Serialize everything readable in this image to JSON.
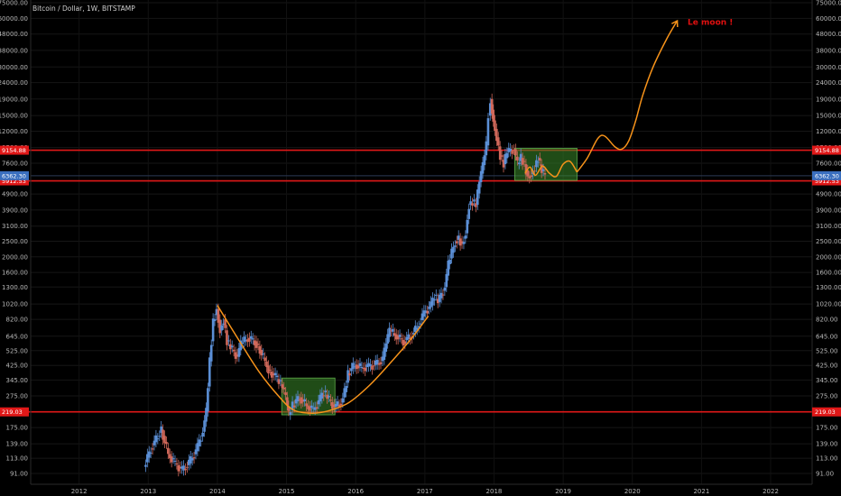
{
  "chart_data": {
    "type": "candlestick",
    "title": "Bitcoin / Dollar, 1W, BITSTAMP",
    "scale": "log",
    "ylim": [
      78,
      78000
    ],
    "xlim": [
      2011.3,
      2022.6
    ],
    "y_ticks": [
      "91.00",
      "113.00",
      "139.00",
      "175.00",
      "219.00",
      "275.00",
      "345.00",
      "425.00",
      "525.00",
      "645.00",
      "820.00",
      "1020.00",
      "1300.00",
      "1600.00",
      "2000.00",
      "2500.00",
      "3100.00",
      "3900.00",
      "4900.00",
      "7600.00",
      "9500.00",
      "12000.00",
      "15000.00",
      "19000.00",
      "24000.00",
      "30000.00",
      "38000.00",
      "48000.00",
      "60000.00",
      "75000.00"
    ],
    "x_ticks": [
      "2012",
      "2013",
      "2014",
      "2015",
      "2016",
      "2017",
      "2018",
      "2019",
      "2020",
      "2021",
      "2022"
    ],
    "horizontal_levels": [
      {
        "label": "9154.88",
        "value": 9154.88,
        "color": "#e01818"
      },
      {
        "label": "5912.53",
        "value": 5912.53,
        "color": "#e01818"
      },
      {
        "label": "219.03",
        "value": 219.03,
        "color": "#e01818"
      }
    ],
    "last_price": {
      "label": "6362.30",
      "value": 6362.3,
      "color": "#3a6fbf"
    },
    "price_series": [
      [
        2012.95,
        100
      ],
      [
        2013.05,
        130
      ],
      [
        2013.2,
        170
      ],
      [
        2013.3,
        120
      ],
      [
        2013.4,
        105
      ],
      [
        2013.5,
        95
      ],
      [
        2013.6,
        105
      ],
      [
        2013.7,
        125
      ],
      [
        2013.8,
        165
      ],
      [
        2013.85,
        220
      ],
      [
        2013.9,
        450
      ],
      [
        2013.95,
        800
      ],
      [
        2014.0,
        950
      ],
      [
        2014.05,
        700
      ],
      [
        2014.1,
        820
      ],
      [
        2014.15,
        600
      ],
      [
        2014.2,
        550
      ],
      [
        2014.3,
        480
      ],
      [
        2014.35,
        580
      ],
      [
        2014.45,
        630
      ],
      [
        2014.55,
        600
      ],
      [
        2014.6,
        560
      ],
      [
        2014.7,
        450
      ],
      [
        2014.75,
        400
      ],
      [
        2014.85,
        360
      ],
      [
        2014.9,
        340
      ],
      [
        2014.95,
        310
      ],
      [
        2015.0,
        270
      ],
      [
        2015.04,
        210
      ],
      [
        2015.1,
        240
      ],
      [
        2015.2,
        270
      ],
      [
        2015.3,
        240
      ],
      [
        2015.4,
        225
      ],
      [
        2015.5,
        265
      ],
      [
        2015.55,
        290
      ],
      [
        2015.6,
        270
      ],
      [
        2015.7,
        235
      ],
      [
        2015.8,
        250
      ],
      [
        2015.85,
        290
      ],
      [
        2015.9,
        380
      ],
      [
        2016.0,
        430
      ],
      [
        2016.1,
        410
      ],
      [
        2016.2,
        420
      ],
      [
        2016.3,
        430
      ],
      [
        2016.4,
        460
      ],
      [
        2016.45,
        580
      ],
      [
        2016.5,
        700
      ],
      [
        2016.6,
        650
      ],
      [
        2016.7,
        600
      ],
      [
        2016.8,
        640
      ],
      [
        2016.9,
        730
      ],
      [
        2017.0,
        900
      ],
      [
        2017.1,
        1000
      ],
      [
        2017.15,
        1150
      ],
      [
        2017.2,
        1050
      ],
      [
        2017.3,
        1300
      ],
      [
        2017.35,
        1800
      ],
      [
        2017.45,
        2500
      ],
      [
        2017.5,
        2600
      ],
      [
        2017.55,
        2400
      ],
      [
        2017.6,
        2800
      ],
      [
        2017.65,
        4200
      ],
      [
        2017.7,
        4400
      ],
      [
        2017.75,
        4200
      ],
      [
        2017.8,
        5800
      ],
      [
        2017.85,
        7400
      ],
      [
        2017.9,
        9800
      ],
      [
        2017.93,
        15000
      ],
      [
        2017.96,
        19000
      ],
      [
        2018.0,
        14000
      ],
      [
        2018.05,
        11000
      ],
      [
        2018.1,
        8500
      ],
      [
        2018.15,
        7500
      ],
      [
        2018.2,
        8900
      ],
      [
        2018.3,
        9300
      ],
      [
        2018.35,
        7500
      ],
      [
        2018.4,
        8200
      ],
      [
        2018.45,
        7500
      ],
      [
        2018.5,
        6300
      ],
      [
        2018.55,
        6500
      ],
      [
        2018.6,
        7200
      ],
      [
        2018.65,
        8200
      ],
      [
        2018.7,
        6800
      ],
      [
        2018.75,
        6400
      ]
    ],
    "annotations": [
      {
        "type": "box",
        "x": [
          2014.93,
          2015.7
        ],
        "y": [
          210,
          355
        ],
        "color": "#3a8a2a"
      },
      {
        "type": "box",
        "x": [
          2018.3,
          2019.2
        ],
        "y": [
          5950,
          9400
        ],
        "color": "#3a8a2a"
      },
      {
        "type": "text",
        "text": "Le moon !",
        "x": 2020.8,
        "y": 57000,
        "color": "#e01010"
      }
    ],
    "projection_curves": [
      {
        "name": "cup",
        "color": "#f7931a",
        "points": [
          [
            2014.0,
            1000
          ],
          [
            2014.3,
            620
          ],
          [
            2014.6,
            390
          ],
          [
            2014.9,
            270
          ],
          [
            2015.1,
            225
          ],
          [
            2015.35,
            215
          ],
          [
            2015.6,
            222
          ],
          [
            2015.9,
            250
          ],
          [
            2016.2,
            320
          ],
          [
            2016.5,
            440
          ],
          [
            2016.8,
            620
          ],
          [
            2017.05,
            860
          ]
        ]
      },
      {
        "name": "base",
        "color": "#f7931a",
        "points": [
          [
            2018.45,
            6600
          ],
          [
            2018.52,
            7200
          ],
          [
            2018.6,
            6400
          ],
          [
            2018.7,
            7300
          ],
          [
            2018.8,
            6600
          ],
          [
            2018.9,
            6300
          ],
          [
            2019.0,
            7500
          ],
          [
            2019.1,
            7800
          ],
          [
            2019.2,
            6700
          ]
        ]
      },
      {
        "name": "projection",
        "color": "#f7931a",
        "points": [
          [
            2019.2,
            6700
          ],
          [
            2019.35,
            8200
          ],
          [
            2019.5,
            10800
          ],
          [
            2019.6,
            11200
          ],
          [
            2019.75,
            9600
          ],
          [
            2019.85,
            9300
          ],
          [
            2019.95,
            10500
          ],
          [
            2020.05,
            14000
          ],
          [
            2020.15,
            20000
          ],
          [
            2020.3,
            30000
          ],
          [
            2020.5,
            45000
          ],
          [
            2020.65,
            58000
          ]
        ]
      }
    ]
  }
}
